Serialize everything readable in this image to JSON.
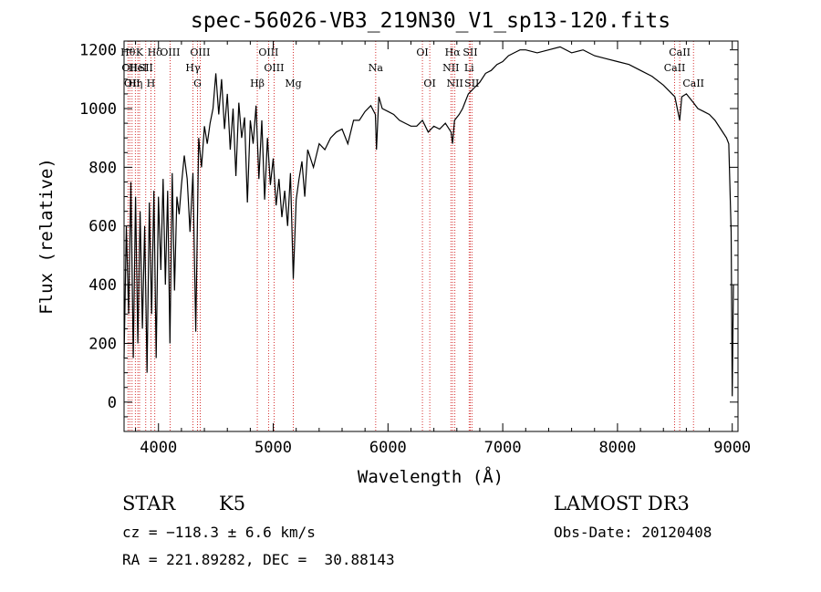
{
  "chart_data": {
    "type": "line",
    "title": "spec-56026-VB3_219N30_V1_sp13-120.fits",
    "xlabel": "Wavelength (Å)",
    "ylabel": "Flux (relative)",
    "xlim": [
      3700,
      9050
    ],
    "ylim": [
      -100,
      1230
    ],
    "xticks": [
      4000,
      5000,
      6000,
      7000,
      8000,
      9000
    ],
    "yticks": [
      0,
      200,
      400,
      600,
      800,
      1000,
      1200
    ],
    "grid": false,
    "line_color": "#000000",
    "marker_color": "#cc0000",
    "series": [
      {
        "x": [
          3700,
          3720,
          3740,
          3760,
          3780,
          3800,
          3820,
          3840,
          3860,
          3880,
          3900,
          3920,
          3940,
          3960,
          3980,
          4000,
          4020,
          4040,
          4060,
          4080,
          4100,
          4120,
          4140,
          4160,
          4180,
          4200,
          4225,
          4250,
          4275,
          4300,
          4325,
          4350,
          4375,
          4400,
          4425,
          4450,
          4475,
          4500,
          4525,
          4550,
          4575,
          4600,
          4625,
          4650,
          4675,
          4700,
          4725,
          4750,
          4775,
          4800,
          4825,
          4850,
          4875,
          4900,
          4925,
          4950,
          4975,
          5000,
          5025,
          5050,
          5075,
          5100,
          5125,
          5150,
          5175,
          5200,
          5225,
          5250,
          5275,
          5300,
          5350,
          5400,
          5450,
          5500,
          5550,
          5600,
          5650,
          5700,
          5750,
          5800,
          5850,
          5890,
          5900,
          5920,
          5950,
          6000,
          6050,
          6100,
          6150,
          6200,
          6250,
          6300,
          6350,
          6400,
          6450,
          6500,
          6550,
          6563,
          6580,
          6620,
          6650,
          6700,
          6750,
          6800,
          6850,
          6900,
          6950,
          7000,
          7050,
          7100,
          7150,
          7200,
          7300,
          7400,
          7500,
          7600,
          7700,
          7800,
          7900,
          8000,
          8100,
          8200,
          8300,
          8400,
          8450,
          8500,
          8542,
          8560,
          8600,
          8662,
          8700,
          8750,
          8800,
          8850,
          8900,
          8950,
          8970,
          8990,
          9000,
          9010
        ],
        "y": [
          150,
          600,
          300,
          750,
          150,
          700,
          200,
          650,
          250,
          600,
          100,
          680,
          300,
          720,
          150,
          700,
          450,
          760,
          400,
          720,
          200,
          780,
          380,
          700,
          640,
          740,
          840,
          760,
          580,
          780,
          240,
          900,
          800,
          940,
          880,
          950,
          1000,
          1120,
          980,
          1100,
          930,
          1050,
          860,
          1000,
          770,
          1020,
          900,
          970,
          680,
          960,
          880,
          1010,
          760,
          960,
          690,
          900,
          740,
          830,
          670,
          760,
          630,
          720,
          600,
          780,
          420,
          690,
          760,
          820,
          700,
          860,
          800,
          880,
          860,
          900,
          920,
          930,
          880,
          960,
          960,
          990,
          1010,
          980,
          860,
          1040,
          1000,
          990,
          980,
          960,
          950,
          940,
          940,
          960,
          920,
          940,
          930,
          950,
          920,
          880,
          960,
          980,
          1000,
          1050,
          1070,
          1090,
          1120,
          1130,
          1150,
          1160,
          1180,
          1190,
          1200,
          1200,
          1190,
          1200,
          1210,
          1190,
          1200,
          1180,
          1170,
          1160,
          1150,
          1130,
          1110,
          1080,
          1060,
          1040,
          960,
          1040,
          1050,
          1020,
          1000,
          990,
          980,
          960,
          930,
          900,
          880,
          580,
          20,
          400
        ]
      }
    ],
    "line_markers": [
      {
        "wavelength": 3734,
        "label": "Hθ",
        "row": 1
      },
      {
        "wavelength": 3750,
        "label": "OII",
        "row": 2
      },
      {
        "wavelength": 3770,
        "label": "OII",
        "row": 3
      },
      {
        "wavelength": 3798,
        "label": "Hη",
        "row": 3
      },
      {
        "wavelength": 3820,
        "label": "HeI",
        "row": 2
      },
      {
        "wavelength": 3835,
        "label": "K",
        "row": 1
      },
      {
        "wavelength": 3889,
        "label": "SII",
        "row": 2
      },
      {
        "wavelength": 3934,
        "label": "H",
        "row": 3
      },
      {
        "wavelength": 3968,
        "label": "Hδ",
        "row": 1
      },
      {
        "wavelength": 4101,
        "label": "OIII",
        "row": 1
      },
      {
        "wavelength": 4300,
        "label": "Hγ",
        "row": 2
      },
      {
        "wavelength": 4340,
        "label": "G",
        "row": 3
      },
      {
        "wavelength": 4363,
        "label": "OIII",
        "row": 1
      },
      {
        "wavelength": 4861,
        "label": "Hβ",
        "row": 3
      },
      {
        "wavelength": 4959,
        "label": "OIII",
        "row": 1
      },
      {
        "wavelength": 5007,
        "label": "OIII",
        "row": 2
      },
      {
        "wavelength": 5175,
        "label": "Mg",
        "row": 3
      },
      {
        "wavelength": 5893,
        "label": "Na",
        "row": 2
      },
      {
        "wavelength": 6300,
        "label": "OI",
        "row": 1
      },
      {
        "wavelength": 6364,
        "label": "OI",
        "row": 3
      },
      {
        "wavelength": 6548,
        "label": "NII",
        "row": 2
      },
      {
        "wavelength": 6563,
        "label": "Hα",
        "row": 1
      },
      {
        "wavelength": 6583,
        "label": "NII",
        "row": 3
      },
      {
        "wavelength": 6707,
        "label": "Li",
        "row": 2
      },
      {
        "wavelength": 6717,
        "label": "SII",
        "row": 1
      },
      {
        "wavelength": 6731,
        "label": "SII",
        "row": 3
      },
      {
        "wavelength": 8498,
        "label": "CaII",
        "row": 2
      },
      {
        "wavelength": 8542,
        "label": "CaII",
        "row": 1
      },
      {
        "wavelength": 8662,
        "label": "CaII",
        "row": 3
      }
    ]
  },
  "info": {
    "class": "STAR",
    "subclass": "K5",
    "survey": "LAMOST DR3",
    "redshift": "cz = −118.3 ± 6.6 km/s",
    "obs_date": "Obs-Date: 20120408",
    "coords": "RA = 221.89282, DEC =  30.88143"
  }
}
